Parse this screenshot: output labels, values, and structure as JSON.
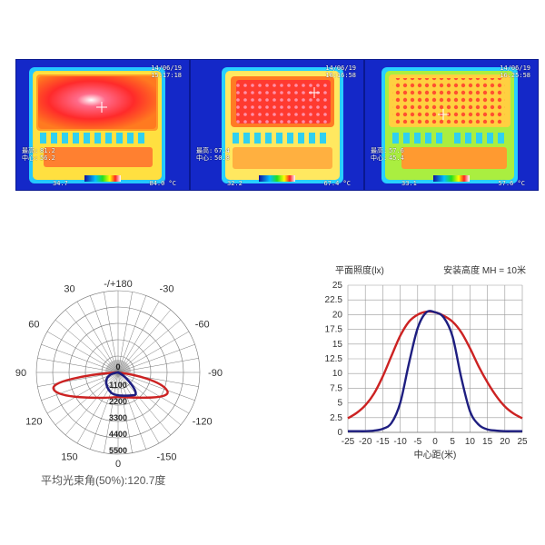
{
  "thermal_images": [
    {
      "date": "14/06/19",
      "time": "15:17:18",
      "max_label": "最高:",
      "max_value": "81.2",
      "center_label": "中心:",
      "center_value": "56.2",
      "scale_min": "34.7",
      "scale_max": "84.0 °C"
    },
    {
      "date": "14/06/19",
      "time": "16:16:58",
      "max_label": "最高:",
      "max_value": "67.4",
      "center_label": "中心:",
      "center_value": "50.8",
      "scale_min": "32.2",
      "scale_max": "67.4 °C"
    },
    {
      "date": "14/06/19",
      "time": "16:25:58",
      "max_label": "最高:",
      "max_value": "57.6",
      "center_label": "中心:",
      "center_value": "45.4",
      "scale_min": "33.1",
      "scale_max": "57.6 °C"
    }
  ],
  "polar": {
    "angle_labels": [
      "-/+180",
      "-150",
      "150",
      "-120",
      "120",
      "-90",
      "90",
      "-60",
      "60",
      "-30",
      "30",
      "0"
    ],
    "radial_labels": [
      "0",
      "1100",
      "2200",
      "3300",
      "4400",
      "5500"
    ],
    "caption": "平均光束角(50%):120.7度",
    "colors": {
      "wide": "#cc2222",
      "narrow": "#1e1e80",
      "hub": "#cccccc",
      "grid": "#777777"
    }
  },
  "chart_data": {
    "type": "line",
    "title": "平面照度(lx)",
    "subtitle": "安装高度 MH = 10米",
    "xlabel": "中心距(米)",
    "ylabel": "",
    "x": [
      -25,
      -22.5,
      -20,
      -17.5,
      -15,
      -12.5,
      -10,
      -7.5,
      -5,
      -2.5,
      0,
      2.5,
      5,
      7.5,
      10,
      12.5,
      15,
      17.5,
      20,
      22.5,
      25
    ],
    "xticks": [
      -25,
      -20,
      -15,
      -10,
      -5,
      0,
      5,
      10,
      15,
      20,
      25
    ],
    "yticks": [
      0,
      2.5,
      5,
      7.5,
      10,
      12.5,
      15,
      17.5,
      20,
      22.5,
      25
    ],
    "xlim": [
      -25,
      25
    ],
    "ylim": [
      0,
      25
    ],
    "grid": true,
    "series": [
      {
        "values": [
          2.4,
          3.3,
          4.6,
          6.6,
          9.5,
          13,
          16.4,
          18.8,
          20,
          20.5,
          20.4,
          19.8,
          18.8,
          17,
          14.3,
          11.2,
          8.5,
          6.2,
          4.4,
          3.2,
          2.4
        ],
        "color": "#cc2222"
      },
      {
        "values": [
          0.2,
          0.2,
          0.2,
          0.3,
          0.6,
          1.6,
          5,
          11.7,
          17.7,
          20.4,
          20.4,
          19.5,
          16.3,
          9.3,
          3.6,
          1.3,
          0.5,
          0.3,
          0.2,
          0.2,
          0.2
        ],
        "color": "#1e1e80"
      }
    ]
  }
}
